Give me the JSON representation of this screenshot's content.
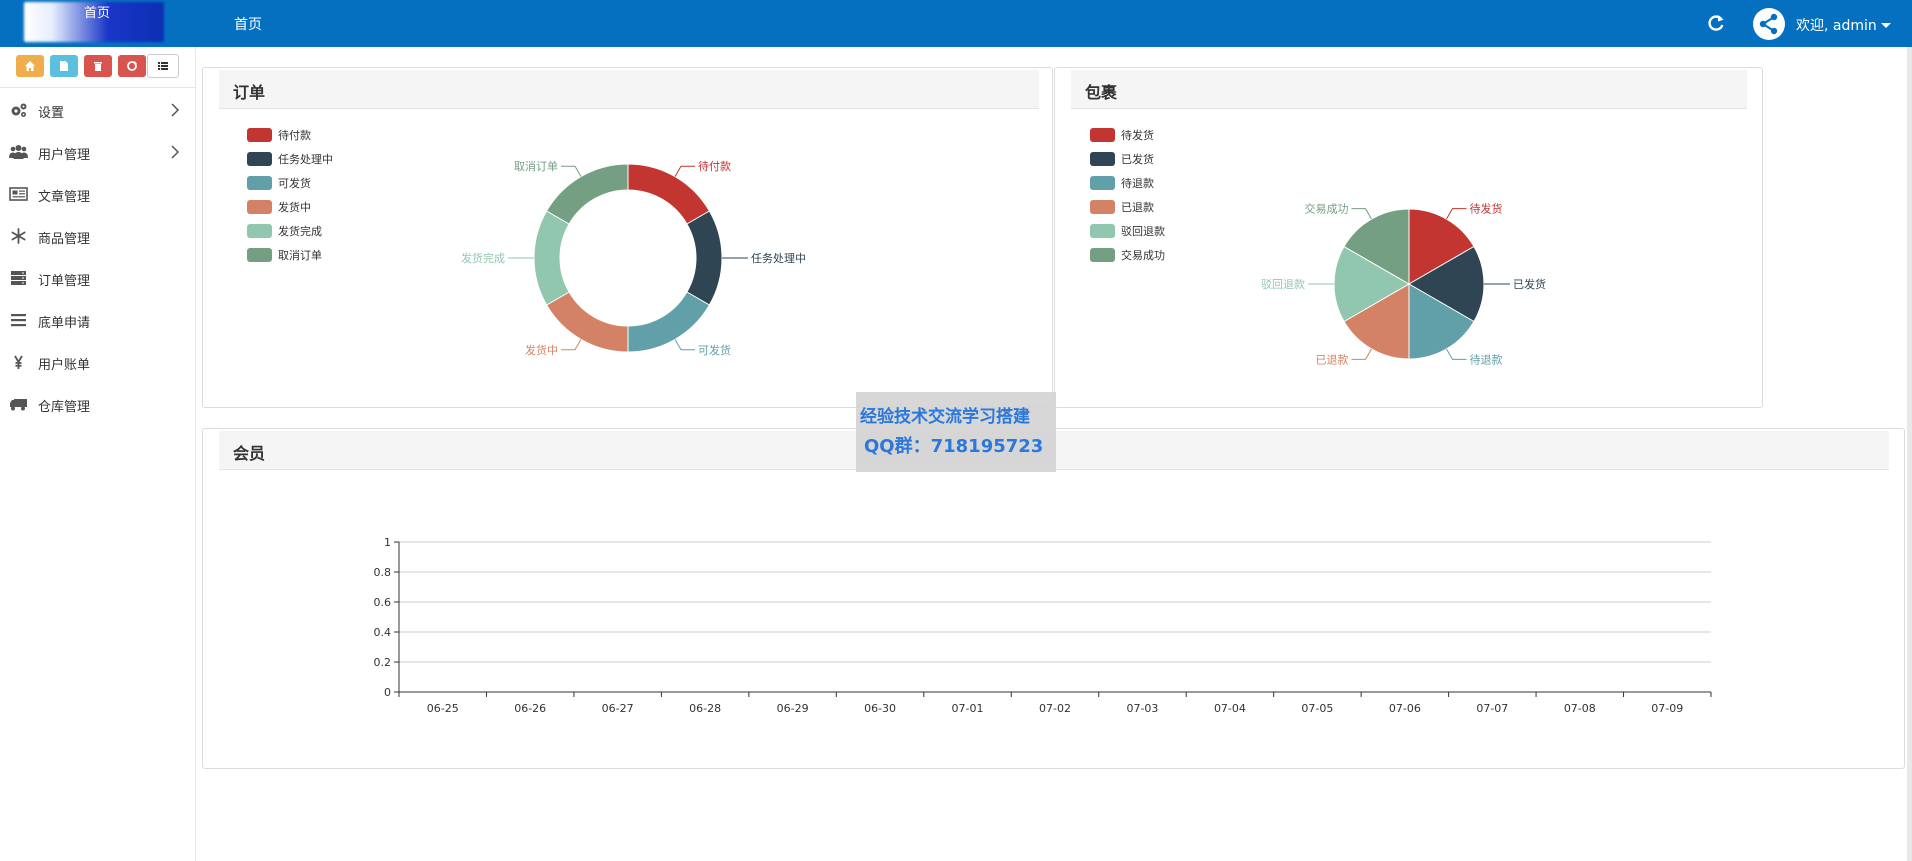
{
  "topbar": {
    "logo_text": "首页",
    "nav_home": "首页",
    "welcome": "欢迎, admin"
  },
  "toolbar": {
    "buttons": [
      {
        "name": "home",
        "color": "#f0ad4e"
      },
      {
        "name": "file",
        "color": "#5bc0de"
      },
      {
        "name": "trash",
        "color": "#d9534f"
      },
      {
        "name": "recycle",
        "color": "#d9534f"
      },
      {
        "name": "list",
        "color": "#ffffff"
      }
    ]
  },
  "sidebar": {
    "items": [
      {
        "label": "设置",
        "icon": "cogs-icon",
        "has_children": true
      },
      {
        "label": "用户管理",
        "icon": "users-icon",
        "has_children": true
      },
      {
        "label": "文章管理",
        "icon": "newspaper-icon",
        "has_children": false
      },
      {
        "label": "商品管理",
        "icon": "snowflake-icon",
        "has_children": false
      },
      {
        "label": "订单管理",
        "icon": "server-icon",
        "has_children": false
      },
      {
        "label": "底单申请",
        "icon": "bars-icon",
        "has_children": false
      },
      {
        "label": "用户账单",
        "icon": "yen-icon",
        "has_children": false
      },
      {
        "label": "仓库管理",
        "icon": "truck-icon",
        "has_children": false
      }
    ]
  },
  "orders_panel": {
    "title": "订单",
    "legend": [
      "待付款",
      "任务处理中",
      "可发货",
      "发货中",
      "发货完成",
      "取消订单"
    ]
  },
  "package_panel": {
    "title": "包裹",
    "legend": [
      "待发货",
      "已发货",
      "待退款",
      "已退款",
      "驳回退款",
      "交易成功"
    ]
  },
  "member_panel": {
    "title": "会员"
  },
  "watermark": {
    "line1": "经验技术交流学习搭建",
    "line2": "QQ群：718195723"
  },
  "colors": {
    "series": [
      "#c23531",
      "#2f4554",
      "#61a0a8",
      "#d48265",
      "#91c7ae",
      "#749f83"
    ],
    "topbar": "#0570c0"
  },
  "chart_data": [
    {
      "type": "pie",
      "variant": "donut",
      "categories": [
        "待付款",
        "任务处理中",
        "可发货",
        "发货中",
        "发货完成",
        "取消订单"
      ],
      "values": [
        1,
        1,
        1,
        1,
        1,
        1
      ],
      "legend_position": "top-left"
    },
    {
      "type": "pie",
      "categories": [
        "待发货",
        "已发货",
        "待退款",
        "已退款",
        "驳回退款",
        "交易成功"
      ],
      "values": [
        1,
        1,
        1,
        1,
        1,
        1
      ],
      "legend_position": "top-left"
    },
    {
      "type": "line",
      "categories": [
        "06-25",
        "06-26",
        "06-27",
        "06-28",
        "06-29",
        "06-30",
        "07-01",
        "07-02",
        "07-03",
        "07-04",
        "07-05",
        "07-06",
        "07-07",
        "07-08",
        "07-09"
      ],
      "series": [
        {
          "values": [
            0,
            0,
            0,
            0,
            0,
            0,
            0,
            0,
            0,
            0,
            0,
            0,
            0,
            0,
            0
          ]
        }
      ],
      "ylim": [
        0,
        1
      ],
      "yticks": [
        "0",
        "0.2",
        "0.4",
        "0.6",
        "0.8",
        "1"
      ],
      "grid": true
    }
  ]
}
